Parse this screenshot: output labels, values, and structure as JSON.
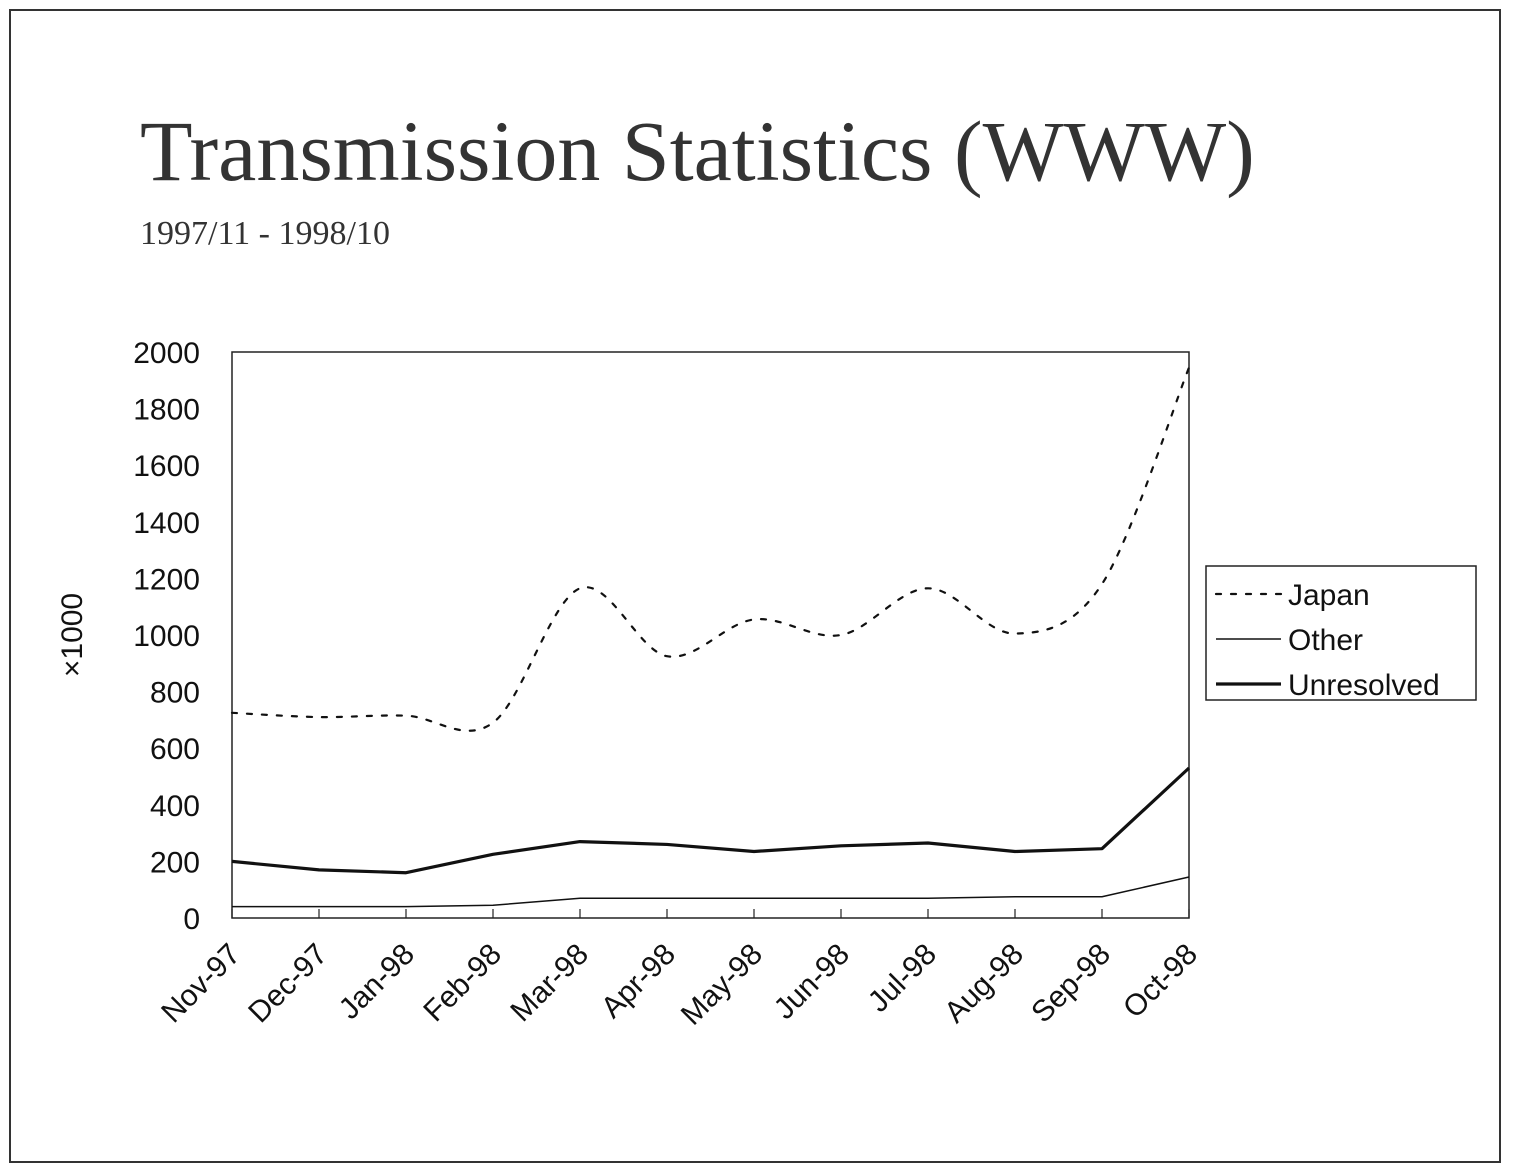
{
  "slide": {
    "title": "Transmission Statistics (WWW)",
    "subtitle": "1997/11 - 1998/10"
  },
  "chart_data": {
    "type": "line",
    "title": "Transmission Statistics (WWW)",
    "subtitle": "1997/11 - 1998/10",
    "xlabel": "",
    "ylabel": "×1000",
    "ylim": [
      0,
      2000
    ],
    "yticks": [
      "0",
      "200",
      "400",
      "600",
      "800",
      "1000",
      "1200",
      "1400",
      "1600",
      "1800",
      "2000"
    ],
    "categories": [
      "Nov-97",
      "Dec-97",
      "Jan-98",
      "Feb-98",
      "Mar-98",
      "Apr-98",
      "May-98",
      "Jun-98",
      "Jul-98",
      "Aug-98",
      "Sep-98",
      "Oct-98"
    ],
    "legend_position": "right",
    "series": [
      {
        "name": "Japan",
        "style": "dotted",
        "values": [
          725,
          710,
          715,
          690,
          1165,
          925,
          1055,
          1000,
          1165,
          1005,
          1180,
          1945
        ]
      },
      {
        "name": "Other",
        "style": "thin",
        "values": [
          40,
          40,
          40,
          45,
          70,
          70,
          70,
          70,
          70,
          75,
          75,
          145
        ]
      },
      {
        "name": "Unresolved",
        "style": "thick",
        "values": [
          200,
          170,
          160,
          225,
          270,
          260,
          235,
          255,
          265,
          235,
          245,
          530
        ]
      }
    ],
    "colors": {
      "line": "#111111",
      "frame": "#333333"
    }
  }
}
